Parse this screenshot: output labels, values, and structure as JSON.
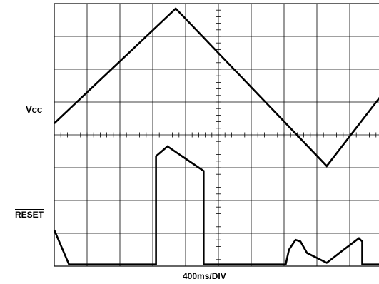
{
  "chart_data": {
    "type": "line",
    "grid": {
      "divisions_x": 10,
      "divisions_y": 8,
      "minor_ticks_per_div": 5
    },
    "xlabel": "400ms/DIV",
    "x_units": "div",
    "y_units": "div",
    "xlim": [
      0,
      10
    ],
    "ylim": [
      0,
      8
    ],
    "series": [
      {
        "name": "Vcc",
        "label_main": "V",
        "label_sub": "CC",
        "x": [
          0,
          3.7,
          8.3,
          10.0
        ],
        "y": [
          4.35,
          7.85,
          3.05,
          5.25
        ]
      },
      {
        "name": "RESET",
        "label": "RESET",
        "x": [
          0,
          0.45,
          3.1,
          3.1,
          3.45,
          4.55,
          4.55,
          7.05,
          7.15,
          7.35,
          7.5,
          7.7,
          8.3,
          8.75,
          9.28,
          9.38,
          9.38,
          10.0
        ],
        "y": [
          1.1,
          0.05,
          0.05,
          3.35,
          3.65,
          2.9,
          0.05,
          0.05,
          0.5,
          0.8,
          0.75,
          0.4,
          0.1,
          0.45,
          0.85,
          0.75,
          0.05,
          0.05
        ]
      }
    ]
  }
}
